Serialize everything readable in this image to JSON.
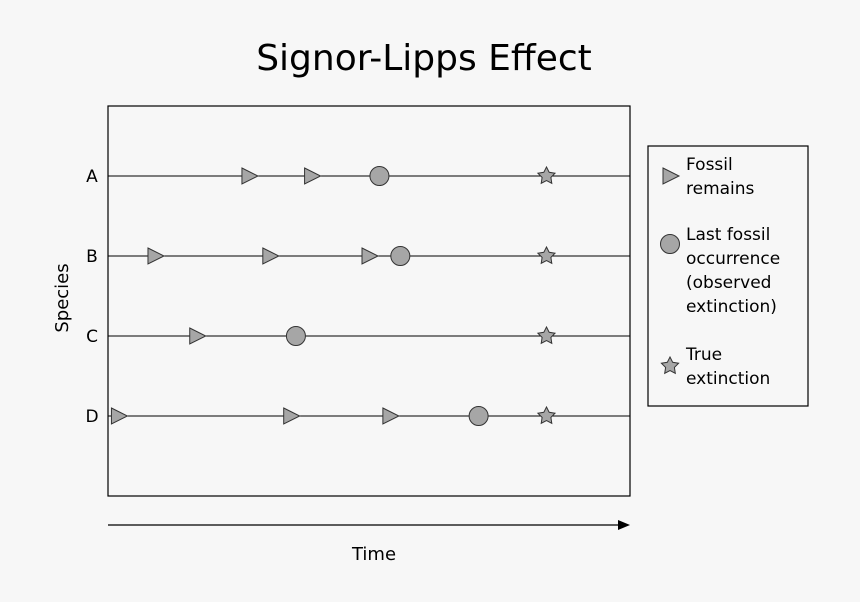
{
  "chart_data": {
    "type": "scatter",
    "title": "Signor-Lipps Effect",
    "xlabel": "Time",
    "ylabel": "Species",
    "categories": [
      "A",
      "B",
      "C",
      "D"
    ],
    "xlim": [
      0,
      100
    ],
    "grid": false,
    "legend_position": "right",
    "series": [
      {
        "name": "Fossil remains",
        "marker": "triangle",
        "points": [
          {
            "species": "A",
            "x": 27
          },
          {
            "species": "A",
            "x": 39
          },
          {
            "species": "B",
            "x": 9
          },
          {
            "species": "B",
            "x": 31
          },
          {
            "species": "B",
            "x": 50
          },
          {
            "species": "C",
            "x": 17
          },
          {
            "species": "D",
            "x": 2
          },
          {
            "species": "D",
            "x": 35
          },
          {
            "species": "D",
            "x": 54
          }
        ]
      },
      {
        "name": "Last fossil occurrence (observed extinction)",
        "marker": "circle",
        "points": [
          {
            "species": "A",
            "x": 52
          },
          {
            "species": "B",
            "x": 56
          },
          {
            "species": "C",
            "x": 36
          },
          {
            "species": "D",
            "x": 71
          }
        ]
      },
      {
        "name": "True extinction",
        "marker": "star",
        "points": [
          {
            "species": "A",
            "x": 84
          },
          {
            "species": "B",
            "x": 84
          },
          {
            "species": "C",
            "x": 84
          },
          {
            "species": "D",
            "x": 84
          }
        ]
      }
    ],
    "legend": {
      "items": [
        {
          "marker": "triangle",
          "lines": [
            "Fossil",
            "remains"
          ]
        },
        {
          "marker": "circle",
          "lines": [
            "Last fossil",
            "occurrence",
            "(observed",
            "extinction)"
          ]
        },
        {
          "marker": "star",
          "lines": [
            "True",
            "extinction"
          ]
        }
      ]
    },
    "colors": {
      "marker_fill": "#a6a6a6",
      "stroke": "#333333",
      "background": "#f7f7f7"
    }
  }
}
